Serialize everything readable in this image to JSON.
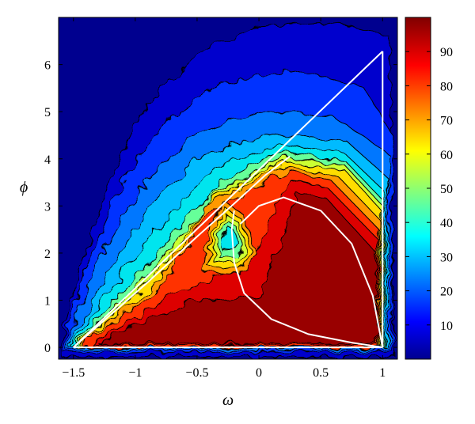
{
  "chart_data": {
    "type": "heatmap",
    "title": "",
    "xlabel": "ω",
    "ylabel": "ϕ",
    "xlim": [
      -1.62,
      1.12
    ],
    "ylim": [
      -0.25,
      7.0
    ],
    "x_ticks": [
      -1.5,
      -1,
      -0.5,
      0,
      0.5,
      1
    ],
    "x_tick_labels": [
      "−1.5",
      "−1",
      "−0.5",
      "0",
      "0.5",
      "1"
    ],
    "y_ticks": [
      0,
      1,
      2,
      3,
      4,
      5,
      6
    ],
    "y_tick_labels": [
      "0",
      "1",
      "2",
      "3",
      "4",
      "5",
      "6"
    ],
    "colorbar": {
      "range": [
        0,
        100
      ],
      "ticks": [
        10,
        20,
        30,
        40,
        50,
        60,
        70,
        80,
        90
      ],
      "tick_labels": [
        "10",
        "20",
        "30",
        "40",
        "50",
        "60",
        "70",
        "80",
        "90"
      ],
      "colormap": "jet"
    },
    "overlay_curves": [
      {
        "points": [
          [
            -1.5,
            0
          ],
          [
            1,
            6.28
          ]
        ]
      },
      {
        "points": [
          [
            -1.5,
            0
          ],
          [
            1,
            0
          ]
        ]
      },
      {
        "points": [
          [
            1,
            0
          ],
          [
            1,
            6.28
          ]
        ]
      },
      {
        "points": [
          [
            -1.5,
            0
          ],
          [
            -0.9,
            1.38
          ],
          [
            -0.5,
            2.35
          ],
          [
            -0.2,
            3.05
          ],
          [
            0.05,
            3.65
          ],
          [
            0.25,
            4.05
          ]
        ]
      },
      {
        "points": [
          [
            -0.15,
            2.62
          ],
          [
            0.0,
            3.0
          ],
          [
            0.2,
            3.18
          ],
          [
            0.5,
            2.9
          ],
          [
            0.75,
            2.2
          ],
          [
            0.92,
            1.1
          ],
          [
            1.0,
            0
          ]
        ]
      },
      {
        "points": [
          [
            -0.2,
            2.9
          ],
          [
            -0.22,
            2.5
          ],
          [
            -0.2,
            1.8
          ],
          [
            -0.12,
            1.15
          ],
          [
            0.1,
            0.6
          ],
          [
            0.4,
            0.28
          ],
          [
            0.75,
            0.1
          ],
          [
            1.0,
            0
          ]
        ]
      }
    ]
  }
}
